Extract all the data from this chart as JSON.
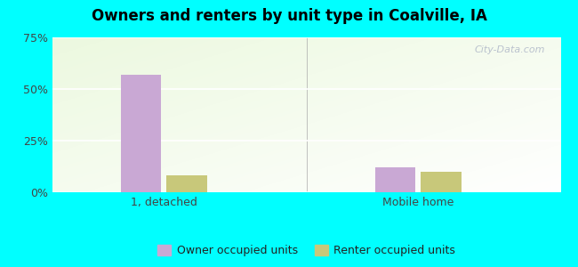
{
  "title": "Owners and renters by unit type in Coalville, IA",
  "categories": [
    "1, detached",
    "Mobile home"
  ],
  "owner_values": [
    57,
    12
  ],
  "renter_values": [
    8,
    10
  ],
  "owner_color": "#c9a8d4",
  "renter_color": "#c8c87a",
  "ylim": [
    0,
    75
  ],
  "yticks": [
    0,
    25,
    50,
    75
  ],
  "ytick_labels": [
    "0%",
    "25%",
    "50%",
    "75%"
  ],
  "legend_owner": "Owner occupied units",
  "legend_renter": "Renter occupied units",
  "bar_width": 0.08,
  "group_centers": [
    0.22,
    0.72
  ],
  "bg_color": "#00ffff",
  "watermark": "City-Data.com",
  "xlim": [
    0,
    1
  ]
}
